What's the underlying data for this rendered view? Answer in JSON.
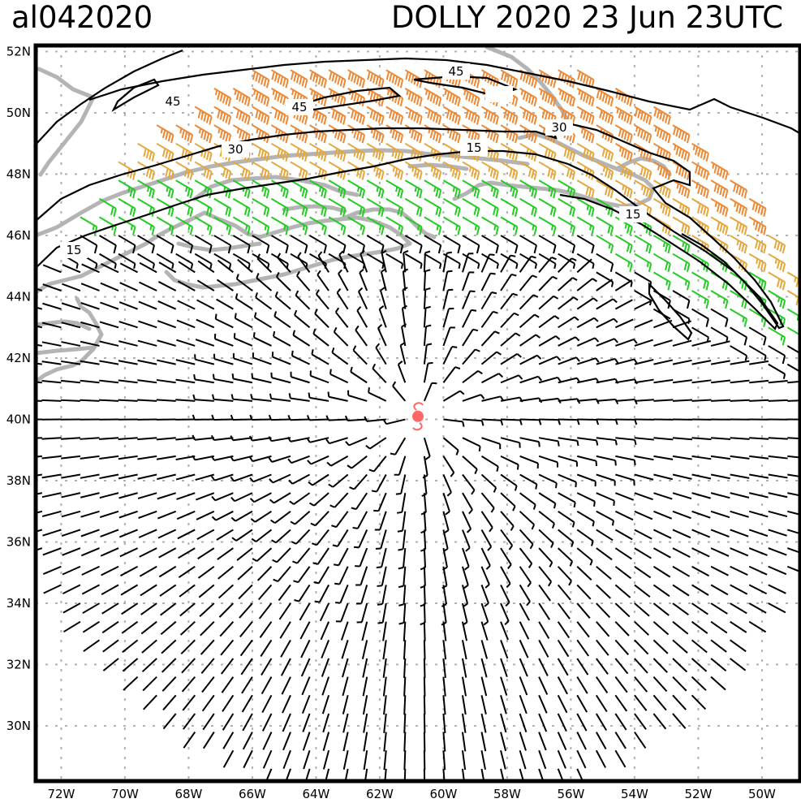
{
  "header": {
    "storm_id": "al042020",
    "storm_title": "DOLLY 2020 23 Jun 23UTC"
  },
  "map": {
    "lon_range": [
      -72.8,
      -48.8
    ],
    "lat_range": [
      28.2,
      52.2
    ],
    "lat_ticks": [
      "52N",
      "50N",
      "48N",
      "46N",
      "44N",
      "42N",
      "40N",
      "38N",
      "36N",
      "34N",
      "32N",
      "30N"
    ],
    "lon_ticks": [
      "72W",
      "70W",
      "68W",
      "66W",
      "64W",
      "62W",
      "60W",
      "58W",
      "56W",
      "54W",
      "52W",
      "50W"
    ],
    "grid_style": "dotted",
    "storm_center": {
      "lon": -60.8,
      "lat": 40.1
    },
    "contour_labels": [
      "45",
      "45",
      "45",
      "30",
      "30",
      "15",
      "15",
      "15"
    ],
    "wind_speed_classes": [
      {
        "min_kt": 0,
        "max_kt": 15,
        "color": "#000000"
      },
      {
        "min_kt": 15,
        "max_kt": 30,
        "color": "#22cc22"
      },
      {
        "min_kt": 30,
        "max_kt": 45,
        "color": "#e6a63a"
      },
      {
        "min_kt": 45,
        "max_kt": 64,
        "color": "#ee8833"
      }
    ],
    "colors": {
      "coastline": "#b4b4b4",
      "grid": "#b0b0b0",
      "storm_symbol": "#ff6666",
      "contour": "#000000"
    }
  }
}
